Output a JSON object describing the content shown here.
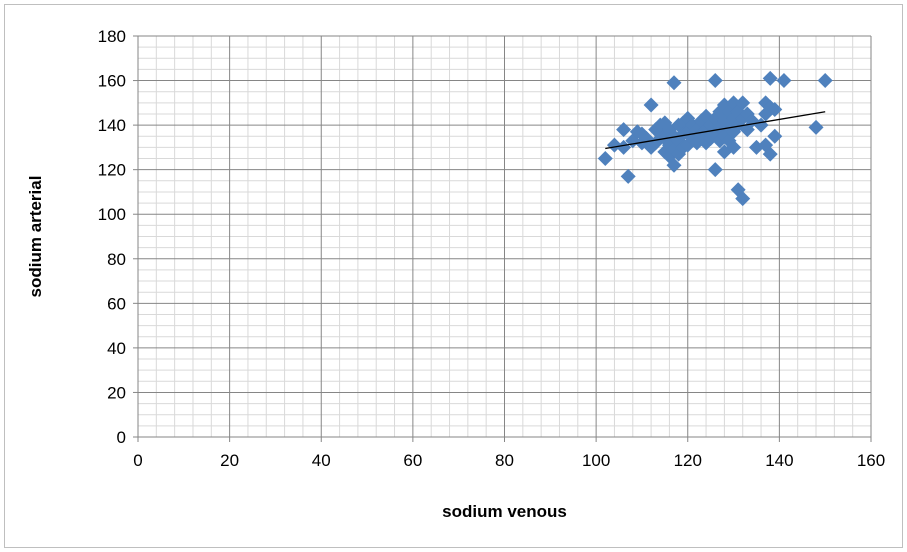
{
  "chart_data": {
    "type": "scatter",
    "title": "",
    "xlabel": "sodium venous",
    "ylabel": "sodium arterial",
    "xlim": [
      0,
      160
    ],
    "ylim": [
      0,
      180
    ],
    "x_ticks": [
      0,
      20,
      40,
      60,
      80,
      100,
      120,
      140,
      160
    ],
    "y_ticks": [
      0,
      20,
      40,
      60,
      80,
      100,
      120,
      140,
      160,
      180
    ],
    "grid": true,
    "legend": "none",
    "marker_color": "#4f81bd",
    "trendline": {
      "type": "linear",
      "x": [
        102,
        150
      ],
      "y": [
        129.5,
        146
      ],
      "color": "#000000"
    },
    "series": [
      {
        "x": [
          102,
          104,
          106,
          106,
          107,
          108,
          109,
          110,
          110,
          111,
          112,
          112,
          113,
          113,
          114,
          114,
          115,
          115,
          115,
          116,
          116,
          116,
          117,
          117,
          117,
          117,
          118,
          118,
          118,
          119,
          119,
          119,
          120,
          120,
          120,
          121,
          121,
          122,
          122,
          123,
          123,
          124,
          124,
          124,
          125,
          125,
          126,
          126,
          126,
          126,
          127,
          127,
          127,
          128,
          128,
          128,
          128,
          129,
          129,
          129,
          130,
          130,
          130,
          130,
          131,
          131,
          131,
          132,
          132,
          132,
          133,
          133,
          134,
          135,
          136,
          137,
          137,
          137,
          138,
          138,
          138,
          139,
          139,
          141,
          148,
          150
        ],
        "y": [
          125,
          131,
          138,
          130,
          117,
          133,
          137,
          132,
          136,
          134,
          149,
          130,
          138,
          132,
          136,
          140,
          141,
          134,
          128,
          138,
          131,
          126,
          159,
          135,
          129,
          122,
          140,
          133,
          127,
          141,
          136,
          130,
          143,
          137,
          131,
          140,
          134,
          138,
          132,
          142,
          136,
          144,
          138,
          132,
          140,
          134,
          160,
          143,
          136,
          120,
          146,
          139,
          133,
          149,
          142,
          135,
          128,
          146,
          139,
          133,
          150,
          143,
          137,
          130,
          146,
          140,
          111,
          150,
          143,
          107,
          145,
          138,
          142,
          130,
          140,
          150,
          145,
          131,
          161,
          148,
          127,
          147,
          135,
          160,
          139,
          160
        ]
      }
    ]
  }
}
